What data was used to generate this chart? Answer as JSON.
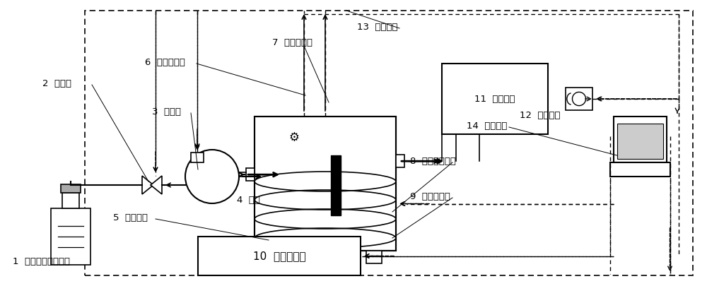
{
  "bg_color": "#ffffff",
  "line_color": "#000000",
  "labels": {
    "1": "1  变压器油进样装置",
    "2": "2  电磁阀",
    "3": "3  电磁泵",
    "4": "4  管道",
    "5": "5  试验腾体",
    "6": "6  油压传感器",
    "7": "7  温度传感器",
    "8": "8  电磁加热线圈",
    "9": "9  密封件试样",
    "10": "10  振动试验台",
    "11": "11  储油装置",
    "12": "12  通讯接口",
    "13": "13  数据总线",
    "14": "14  控制终端"
  },
  "font_size": 9.5
}
